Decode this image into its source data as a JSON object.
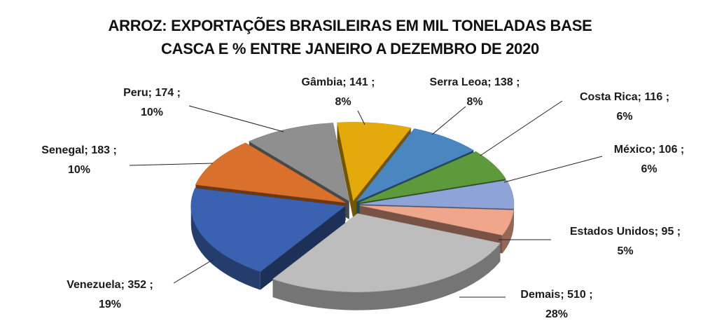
{
  "chart_data": {
    "type": "pie",
    "title_lines": [
      "ARROZ: EXPORTAÇÕES BRASILEIRAS EM MIL TONELADAS BASE",
      "CASCA E % ENTRE JANEIRO A DEZEMBRO DE 2020"
    ],
    "three_d": true,
    "slices": [
      {
        "name": "Gâmbia",
        "value": 141,
        "percent": "8%",
        "color": "#E4AA0B"
      },
      {
        "name": "Serra Leoa",
        "value": 138,
        "percent": "8%",
        "color": "#4A86C0"
      },
      {
        "name": "Costa Rica",
        "value": 116,
        "percent": "6%",
        "color": "#5C9A3C"
      },
      {
        "name": "México",
        "value": 106,
        "percent": "6%",
        "color": "#8EA3D8"
      },
      {
        "name": "Estados Unidos",
        "value": 95,
        "percent": "5%",
        "color": "#EFA68A"
      },
      {
        "name": "Demais",
        "value": 510,
        "percent": "28%",
        "color": "#BDBDBD"
      },
      {
        "name": "Venezuela",
        "value": 352,
        "percent": "19%",
        "color": "#3A62B0"
      },
      {
        "name": "Senegal",
        "value": 183,
        "percent": "10%",
        "color": "#D9702B"
      },
      {
        "name": "Peru",
        "value": 174,
        "percent": "10%",
        "color": "#8F8F8F"
      }
    ]
  }
}
